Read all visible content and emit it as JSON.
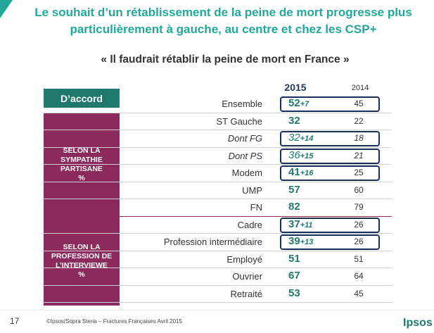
{
  "header": {
    "title_line1": "Le souhait d’un rétablissement de la peine de mort progresse plus",
    "title_line2": "particulièrement à gauche, au centre et chez les CSP+",
    "subtitle": "« Il faudrait rétablir la peine de mort en France »"
  },
  "table": {
    "measure_label": "D’accord",
    "col_2015": "2015",
    "col_2014": "2014",
    "group1": [
      "SELON LA",
      "SYMPATHIE",
      "PARTISANE",
      "%"
    ],
    "group2": [
      "SELON LA",
      "PROFESSION DE",
      "L’INTERVIEWE",
      "%"
    ]
  },
  "chart_data": {
    "type": "table",
    "title": "« Il faudrait rétablir la peine de mort en France »",
    "columns": [
      "2015",
      "2014"
    ],
    "rows": [
      {
        "label": "Ensemble",
        "v2015": "52",
        "delta": "+7",
        "v2014": "45",
        "italic": false,
        "highlight": true
      },
      {
        "label": "ST Gauche",
        "v2015": "32",
        "delta": "",
        "v2014": "22",
        "italic": false,
        "highlight": false
      },
      {
        "label": "Dont FG",
        "v2015": "32",
        "delta": "+14",
        "v2014": "18",
        "italic": true,
        "highlight": true
      },
      {
        "label": "Dont PS",
        "v2015": "36",
        "delta": "+15",
        "v2014": "21",
        "italic": true,
        "highlight": true
      },
      {
        "label": "Modem",
        "v2015": "41",
        "delta": "+16",
        "v2014": "25",
        "italic": false,
        "highlight": true
      },
      {
        "label": "UMP",
        "v2015": "57",
        "delta": "",
        "v2014": "60",
        "italic": false,
        "highlight": false
      },
      {
        "label": "FN",
        "v2015": "82",
        "delta": "",
        "v2014": "79",
        "italic": false,
        "highlight": false
      },
      {
        "label": "Cadre",
        "v2015": "37",
        "delta": "+11",
        "v2014": "26",
        "italic": false,
        "highlight": true
      },
      {
        "label": "Profession intermédiaire",
        "v2015": "39",
        "delta": "+13",
        "v2014": "26",
        "italic": false,
        "highlight": true
      },
      {
        "label": "Employé",
        "v2015": "51",
        "delta": "",
        "v2014": "51",
        "italic": false,
        "highlight": false
      },
      {
        "label": "Ouvrier",
        "v2015": "67",
        "delta": "",
        "v2014": "64",
        "italic": false,
        "highlight": false
      },
      {
        "label": "Retraité",
        "v2015": "53",
        "delta": "",
        "v2014": "45",
        "italic": false,
        "highlight": false
      }
    ]
  },
  "footer": {
    "page": "17",
    "source": "©Ipsos/Sopra Steria –  Fractures Françaises  Avril 2015",
    "brand": "Ipsos"
  },
  "colors": {
    "title": "#21a89a",
    "group_bg": "#8c2a5d",
    "measure_bg": "#1f7a6d",
    "highlight_border": "#1a2f5a"
  }
}
